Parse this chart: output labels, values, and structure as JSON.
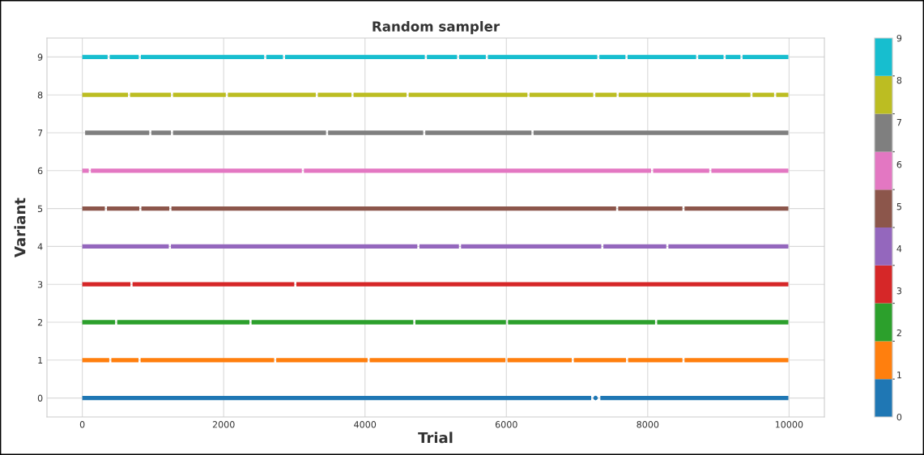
{
  "chart_data": {
    "type": "line",
    "title": "Random sampler",
    "xlabel": "Trial",
    "ylabel": "Variant",
    "xlim": [
      -500,
      10500
    ],
    "xticks": [
      0,
      2000,
      4000,
      6000,
      8000,
      10000
    ],
    "ylim": [
      -0.5,
      9.5
    ],
    "yticks": [
      0,
      1,
      2,
      3,
      4,
      5,
      6,
      7,
      8,
      9
    ],
    "grid": true,
    "line_style": "solid",
    "clim": [
      0,
      9
    ],
    "cticks": [
      0,
      1,
      2,
      3,
      4,
      5,
      6,
      7,
      8,
      9
    ],
    "series": [
      {
        "color": "#1f77b4",
        "x": [
          0,
          7200,
          7262,
          7330,
          9990
        ],
        "values": [
          0,
          0,
          null,
          0,
          0
        ]
      },
      {
        "type": "scatter",
        "color": "#1f77b4",
        "x": [
          7262
        ],
        "values": [
          0
        ]
      },
      {
        "color": "#ff7f0e",
        "x": [
          0,
          381,
          396,
          411,
          795,
          810,
          825,
          2714,
          2729,
          2744,
          4036,
          4051,
          4066,
          5986,
          6001,
          6016,
          6925,
          6940,
          6955,
          7693,
          7708,
          7723,
          8491,
          8506,
          8521,
          9990
        ],
        "values": [
          1,
          1,
          null,
          1,
          1,
          null,
          1,
          1,
          null,
          1,
          1,
          null,
          1,
          1,
          null,
          1,
          1,
          null,
          1,
          1,
          null,
          1,
          1,
          null,
          1,
          1
        ]
      },
      {
        "color": "#2ca02c",
        "x": [
          0,
          464,
          479,
          494,
          2365,
          2380,
          2395,
          4683,
          4698,
          4713,
          5994,
          6009,
          6024,
          8104,
          8119,
          8134,
          9990
        ],
        "values": [
          2,
          2,
          null,
          2,
          2,
          null,
          2,
          2,
          null,
          2,
          2,
          null,
          2,
          2,
          null,
          2,
          2
        ]
      },
      {
        "color": "#d62728",
        "x": [
          0,
          681,
          696,
          711,
          2999,
          3014,
          3029,
          9990
        ],
        "values": [
          3,
          3,
          null,
          3,
          3,
          null,
          3,
          3
        ]
      },
      {
        "color": "#9467bd",
        "x": [
          0,
          1224,
          1239,
          1254,
          4740,
          4755,
          4770,
          5329,
          5344,
          5359,
          7343,
          7358,
          7373,
          8263,
          8278,
          8293,
          9990
        ],
        "values": [
          4,
          4,
          null,
          4,
          4,
          null,
          4,
          4,
          null,
          4,
          4,
          null,
          4,
          4,
          null,
          4,
          4
        ]
      },
      {
        "color": "#8c564b",
        "x": [
          0,
          319,
          334,
          349,
          806,
          821,
          836,
          1231,
          1246,
          1261,
          7553,
          7568,
          7583,
          8491,
          8506,
          8521,
          9990
        ],
        "values": [
          5,
          5,
          null,
          5,
          5,
          null,
          5,
          5,
          null,
          5,
          5,
          null,
          5,
          5,
          null,
          5,
          5
        ]
      },
      {
        "color": "#e377c2",
        "x": [
          0,
          91,
          106,
          121,
          3106,
          3121,
          3136,
          8047,
          8062,
          8077,
          8871,
          8886,
          8901,
          9990
        ],
        "values": [
          6,
          6,
          null,
          6,
          6,
          null,
          6,
          6,
          null,
          6,
          6,
          null,
          6,
          6
        ]
      },
      {
        "color": "#7f7f7f",
        "x": [
          40,
          947,
          962,
          977,
          1254,
          1269,
          1284,
          3448,
          3463,
          3478,
          4823,
          4838,
          4853,
          6355,
          6370,
          6385,
          9990
        ],
        "values": [
          7,
          7,
          null,
          7,
          7,
          null,
          7,
          7,
          null,
          7,
          7,
          null,
          7,
          7,
          null,
          7,
          7
        ]
      },
      {
        "color": "#bcbd22",
        "x": [
          0,
          646,
          661,
          676,
          1254,
          1269,
          1284,
          2030,
          2045,
          2060,
          3303,
          3318,
          3333,
          3808,
          3823,
          3838,
          4588,
          4603,
          4618,
          6298,
          6313,
          6328,
          7229,
          7244,
          7259,
          7560,
          7575,
          7590,
          9453,
          9468,
          9483,
          9788,
          9803,
          9818,
          9990
        ],
        "values": [
          8,
          8,
          null,
          8,
          8,
          null,
          8,
          8,
          null,
          8,
          8,
          null,
          8,
          8,
          null,
          8,
          8,
          null,
          8,
          8,
          null,
          8,
          8,
          null,
          8,
          8,
          null,
          8,
          8,
          null,
          8,
          8,
          null,
          8,
          8
        ]
      },
      {
        "color": "#17becf",
        "x": [
          0,
          358,
          373,
          388,
          798,
          813,
          828,
          2573,
          2588,
          2603,
          2839,
          2854,
          2869,
          4846,
          4861,
          4876,
          5302,
          5317,
          5332,
          5709,
          5724,
          5739,
          7286,
          7301,
          7316,
          7685,
          7700,
          7715,
          8685,
          8700,
          8715,
          9073,
          9088,
          9103,
          9312,
          9327,
          9342,
          9990
        ],
        "values": [
          9,
          9,
          null,
          9,
          9,
          null,
          9,
          9,
          null,
          9,
          9,
          null,
          9,
          9,
          null,
          9,
          9,
          null,
          9,
          9,
          null,
          9,
          9,
          null,
          9,
          9,
          null,
          9,
          9,
          null,
          9,
          9,
          null,
          9,
          9,
          null,
          9,
          9
        ]
      }
    ]
  }
}
